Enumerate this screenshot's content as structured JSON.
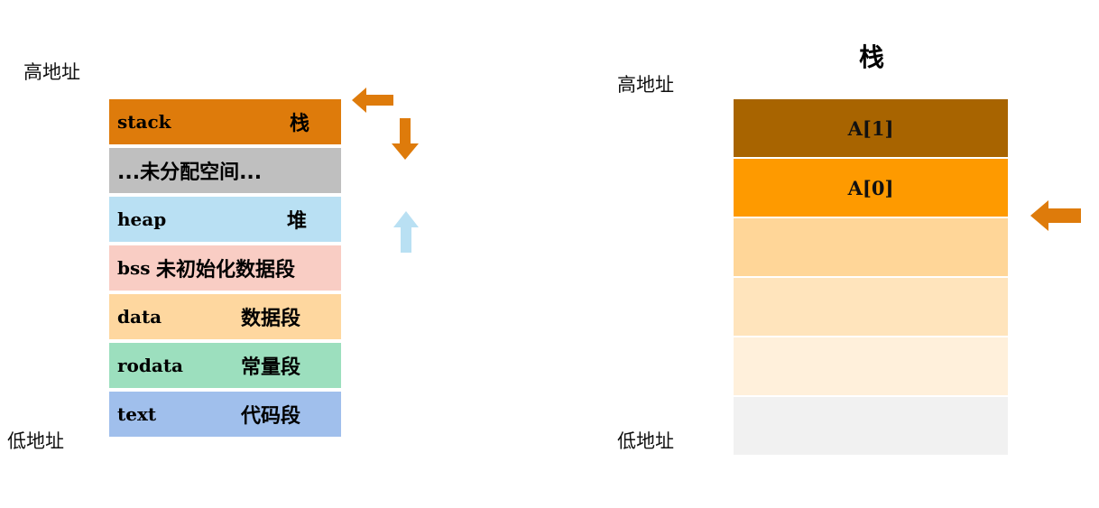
{
  "left": {
    "high_label": "高地址",
    "low_label": "低地址",
    "segments": [
      {
        "en": "stack",
        "zh": "栈",
        "color": "#DE7B0B"
      },
      {
        "text": "...未分配空间...",
        "color": "#BFBFBF"
      },
      {
        "en": "heap",
        "zh": "堆",
        "color": "#B9E0F3"
      },
      {
        "en": "bss",
        "zh": "未初始化数据段",
        "color": "#F9CDC4"
      },
      {
        "en": "data",
        "zh": "数据段",
        "color": "#FED79F"
      },
      {
        "en": "rodata",
        "zh": "常量段",
        "color": "#9CDFBE"
      },
      {
        "en": "text",
        "zh": "代码段",
        "color": "#A0BFEC"
      }
    ]
  },
  "right": {
    "title": "栈",
    "high_label": "高地址",
    "low_label": "低地址",
    "cells": [
      {
        "label": "A[1]",
        "color": "#A86400"
      },
      {
        "label": "A[0]",
        "color": "#FE9A00"
      },
      {
        "label": "",
        "color": "#FFD698"
      },
      {
        "label": "",
        "color": "#FFE4BC"
      },
      {
        "label": "",
        "color": "#FFF0DB"
      },
      {
        "label": "",
        "color": "#F1F1F1"
      }
    ]
  },
  "colors": {
    "orange_arrow": "#DE7B0B",
    "blue_arrow": "#B9E0F3"
  }
}
